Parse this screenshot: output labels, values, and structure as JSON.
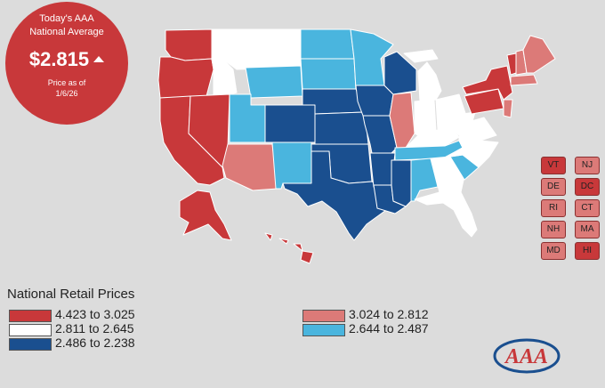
{
  "national_average": {
    "title_line1": "Today's AAA",
    "title_line2": "National Average",
    "price": "$2.815",
    "trend": "up",
    "asof_line1": "Price as of",
    "asof_line2": "1/6/26"
  },
  "legend": {
    "title": "National Retail Prices",
    "items": [
      {
        "label": "4.423 to 3.025",
        "color": "#c8383a"
      },
      {
        "label": "2.811 to 2.645",
        "color": "#ffffff"
      },
      {
        "label": "2.486 to 2.238",
        "color": "#1a4f8f"
      },
      {
        "label": "3.024 to 2.812",
        "color": "#dc7a78"
      },
      {
        "label": "2.644 to 2.487",
        "color": "#4ab5de"
      }
    ]
  },
  "small_states": [
    {
      "code": "VT",
      "color": "#c8383a"
    },
    {
      "code": "NJ",
      "color": "#dc7a78"
    },
    {
      "code": "DE",
      "color": "#dc7a78"
    },
    {
      "code": "DC",
      "color": "#c8383a"
    },
    {
      "code": "RI",
      "color": "#dc7a78"
    },
    {
      "code": "CT",
      "color": "#dc7a78"
    },
    {
      "code": "NH",
      "color": "#dc7a78"
    },
    {
      "code": "MA",
      "color": "#dc7a78"
    },
    {
      "code": "MD",
      "color": "#dc7a78"
    },
    {
      "code": "HI",
      "color": "#c8383a"
    }
  ],
  "state_fills": {
    "WA": "#c8383a",
    "OR": "#c8383a",
    "CA": "#c8383a",
    "NV": "#c8383a",
    "ID": "#ffffff",
    "MT": "#ffffff",
    "WY": "#4ab5de",
    "UT": "#4ab5de",
    "AZ": "#dc7a78",
    "CO": "#1a4f8f",
    "NM": "#4ab5de",
    "ND": "#4ab5de",
    "SD": "#4ab5de",
    "NE": "#1a4f8f",
    "KS": "#1a4f8f",
    "OK": "#1a4f8f",
    "TX": "#1a4f8f",
    "MN": "#4ab5de",
    "IA": "#1a4f8f",
    "MO": "#1a4f8f",
    "AR": "#1a4f8f",
    "LA": "#1a4f8f",
    "WI": "#1a4f8f",
    "IL": "#dc7a78",
    "MI": "#ffffff",
    "IN": "#ffffff",
    "OH": "#ffffff",
    "KY": "#ffffff",
    "TN": "#4ab5de",
    "MS": "#1a4f8f",
    "AL": "#4ab5de",
    "GA": "#ffffff",
    "FL": "#ffffff",
    "SC": "#4ab5de",
    "NC": "#ffffff",
    "VA": "#ffffff",
    "WV": "#ffffff",
    "PA": "#c8383a",
    "NY": "#c8383a",
    "VT": "#c8383a",
    "NH": "#dc7a78",
    "ME": "#dc7a78",
    "MA": "#dc7a78",
    "NJ": "#dc7a78",
    "AK": "#c8383a",
    "HI": "#c8383a"
  },
  "logo_text": "AAA"
}
